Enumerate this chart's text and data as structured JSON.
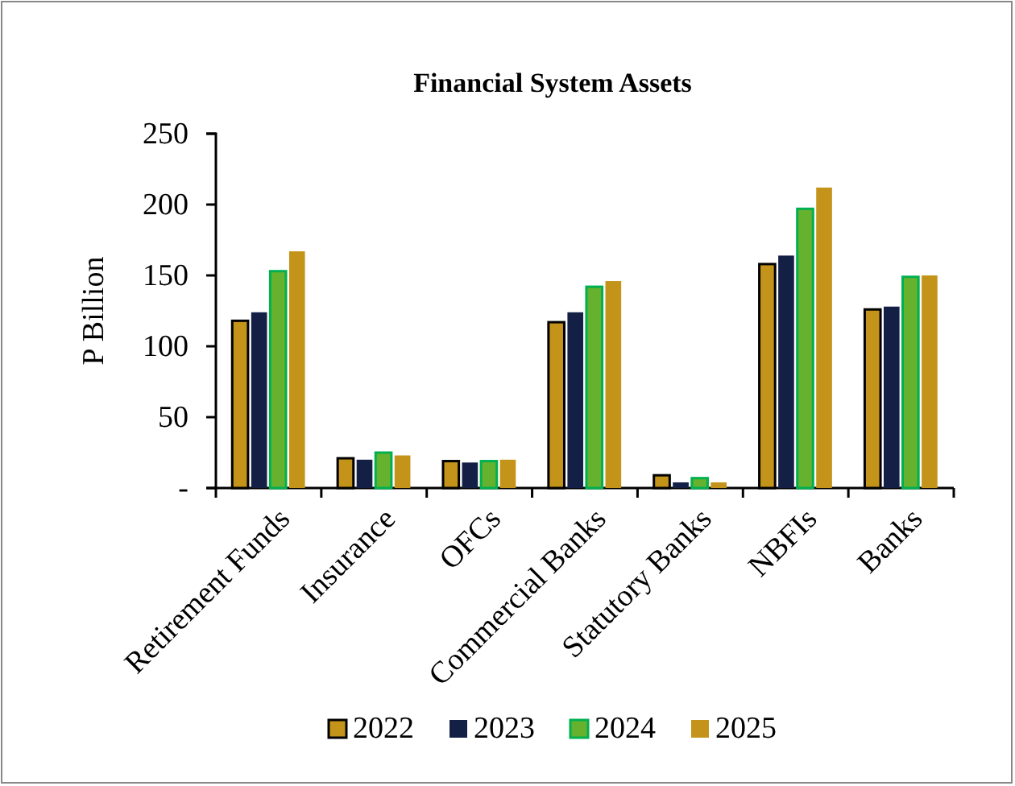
{
  "chart_data": {
    "type": "bar",
    "title": "Financial System Assets",
    "ylabel": "P Billion",
    "categories": [
      "Retirement Funds",
      "Insurance",
      "OFCs",
      "Commercial Banks",
      "Statutory Banks",
      "NBFIs",
      "Banks"
    ],
    "series": [
      {
        "name": "2022",
        "color": "#c4941a",
        "values": [
          118,
          21,
          19,
          117,
          9,
          158,
          126
        ]
      },
      {
        "name": "2023",
        "color": "#141f45",
        "values": [
          124,
          20,
          18,
          124,
          4,
          164,
          128
        ]
      },
      {
        "name": "2024",
        "color": "#66b22f",
        "values": [
          153,
          25,
          19,
          142,
          7,
          197,
          149
        ]
      },
      {
        "name": "2025",
        "color": "#c4941a",
        "values": [
          167,
          23,
          20,
          146,
          4,
          212,
          150
        ]
      }
    ],
    "ylim": [
      0,
      250
    ],
    "yticks": [
      {
        "value": 0,
        "label": "-"
      },
      50,
      100,
      150,
      200,
      250
    ],
    "grid": false,
    "legend": "bottom"
  }
}
